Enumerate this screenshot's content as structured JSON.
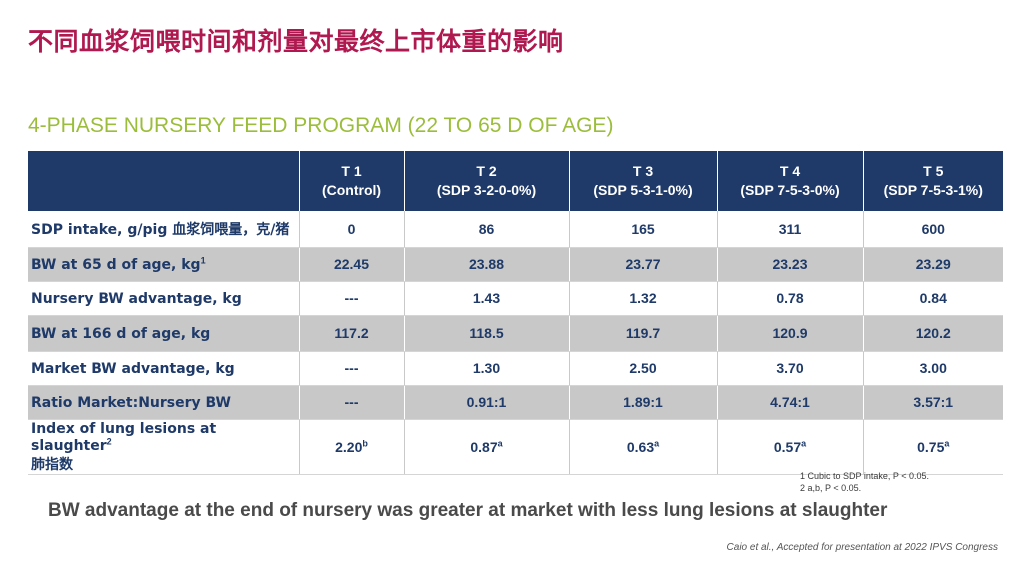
{
  "title": "不同血浆饲喂时间和剂量对最终上市体重的影响",
  "subtitle": "4-PHASE NURSERY FEED PROGRAM (22 TO 65 D OF AGE)",
  "table": {
    "headers": [
      {
        "line1": "",
        "line2": ""
      },
      {
        "line1": "T 1",
        "line2": "(Control)"
      },
      {
        "line1": "T 2",
        "line2": "(SDP 3-2-0-0%)"
      },
      {
        "line1": "T 3",
        "line2": "(SDP 5-3-1-0%)"
      },
      {
        "line1": "T 4",
        "line2": "(SDP 7-5-3-0%)"
      },
      {
        "line1": "T 5",
        "line2": "(SDP 7-5-3-1%)"
      }
    ],
    "rows": [
      {
        "label": "SDP intake, g/pig 血浆饲喂量，克/猪",
        "label_sup": "",
        "label_line2": "",
        "cells": [
          {
            "v": "0",
            "s": ""
          },
          {
            "v": "86",
            "s": ""
          },
          {
            "v": "165",
            "s": ""
          },
          {
            "v": "311",
            "s": ""
          },
          {
            "v": "600",
            "s": ""
          }
        ]
      },
      {
        "label": "BW at 65 d of age, kg",
        "label_sup": "1",
        "label_line2": "",
        "cells": [
          {
            "v": "22.45",
            "s": ""
          },
          {
            "v": "23.88",
            "s": ""
          },
          {
            "v": "23.77",
            "s": ""
          },
          {
            "v": "23.23",
            "s": ""
          },
          {
            "v": "23.29",
            "s": ""
          }
        ]
      },
      {
        "label": "Nursery BW advantage, kg",
        "label_sup": "",
        "label_line2": "",
        "cells": [
          {
            "v": "---",
            "s": ""
          },
          {
            "v": "1.43",
            "s": ""
          },
          {
            "v": "1.32",
            "s": ""
          },
          {
            "v": "0.78",
            "s": ""
          },
          {
            "v": "0.84",
            "s": ""
          }
        ]
      },
      {
        "label": "BW at 166 d of age, kg",
        "label_sup": "",
        "label_line2": "",
        "cells": [
          {
            "v": "117.2",
            "s": ""
          },
          {
            "v": "118.5",
            "s": ""
          },
          {
            "v": "119.7",
            "s": ""
          },
          {
            "v": "120.9",
            "s": ""
          },
          {
            "v": "120.2",
            "s": ""
          }
        ]
      },
      {
        "label": "Market BW advantage, kg",
        "label_sup": "",
        "label_line2": "",
        "cells": [
          {
            "v": "---",
            "s": ""
          },
          {
            "v": "1.30",
            "s": ""
          },
          {
            "v": "2.50",
            "s": ""
          },
          {
            "v": "3.70",
            "s": ""
          },
          {
            "v": "3.00",
            "s": ""
          }
        ]
      },
      {
        "label": "Ratio Market:Nursery BW",
        "label_sup": "",
        "label_line2": "",
        "cells": [
          {
            "v": "---",
            "s": ""
          },
          {
            "v": "0.91:1",
            "s": ""
          },
          {
            "v": "1.89:1",
            "s": ""
          },
          {
            "v": "4.74:1",
            "s": ""
          },
          {
            "v": "3.57:1",
            "s": ""
          }
        ]
      },
      {
        "label": "Index of lung lesions at slaughter",
        "label_sup": "2",
        "label_line2": "肺指数",
        "cells": [
          {
            "v": "2.20",
            "s": "b"
          },
          {
            "v": "0.87",
            "s": "a"
          },
          {
            "v": "0.63",
            "s": "a"
          },
          {
            "v": "0.57",
            "s": "a"
          },
          {
            "v": "0.75",
            "s": "a"
          }
        ]
      }
    ]
  },
  "footnotes": [
    "1 Cubic to SDP intake, P < 0.05.",
    "2 a,b, P < 0.05."
  ],
  "conclusion": "BW advantage at the end of nursery was greater at market with less lung lesions at slaughter",
  "citation": "Caio et al., Accepted for presentation at 2022 IPVS Congress",
  "colors": {
    "title": "#b0194f",
    "subtitle": "#9cbd3c",
    "header_bg": "#1f3a68",
    "row_text": "#1f3a68",
    "shade": "#c8c8c8"
  }
}
